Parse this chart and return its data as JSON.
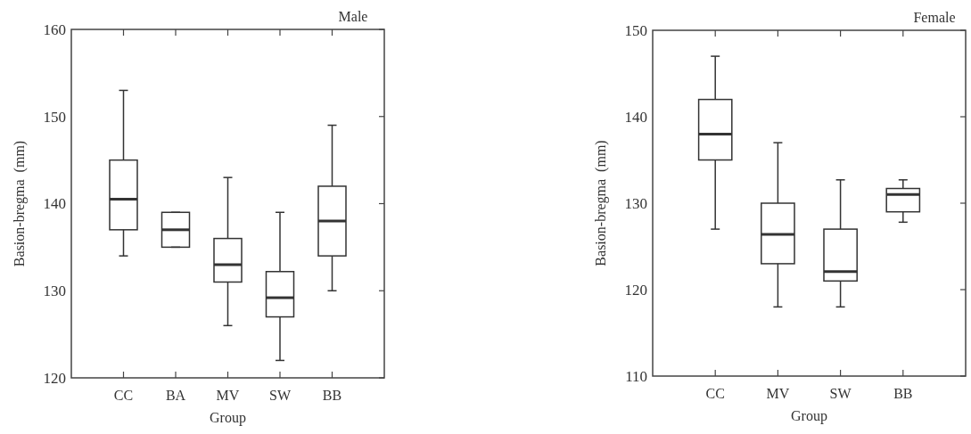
{
  "chart_data": [
    {
      "type": "box",
      "title": "Male",
      "xlabel": "Group",
      "ylabel": "Basion-bregma  (mm)",
      "categories": [
        "CC",
        "BA",
        "MV",
        "SW",
        "BB"
      ],
      "ylim": [
        120,
        160
      ],
      "yticks": [
        120,
        130,
        140,
        150,
        160
      ],
      "grid": false,
      "color": "#333333",
      "boxes": [
        {
          "low": 134,
          "q1": 137,
          "median": 140.5,
          "q3": 145,
          "high": 153
        },
        {
          "low": 135,
          "q1": 135,
          "median": 137,
          "q3": 139,
          "high": 139
        },
        {
          "low": 126,
          "q1": 131,
          "median": 133,
          "q3": 136,
          "high": 143
        },
        {
          "low": 122,
          "q1": 127,
          "median": 129.2,
          "q3": 132.2,
          "high": 139
        },
        {
          "low": 130,
          "q1": 134,
          "median": 138,
          "q3": 142,
          "high": 149
        }
      ]
    },
    {
      "type": "box",
      "title": "Female",
      "xlabel": "Group",
      "ylabel": "Basion-bregma  (mm)",
      "categories": [
        "CC",
        "MV",
        "SW",
        "BB"
      ],
      "ylim": [
        110,
        150
      ],
      "yticks": [
        110,
        120,
        130,
        140,
        150
      ],
      "grid": false,
      "color": "#333333",
      "boxes": [
        {
          "low": 127,
          "q1": 135,
          "median": 138,
          "q3": 142,
          "high": 147
        },
        {
          "low": 118,
          "q1": 123,
          "median": 126.4,
          "q3": 130,
          "high": 137
        },
        {
          "low": 118,
          "q1": 121,
          "median": 122.1,
          "q3": 127,
          "high": 132.7
        },
        {
          "low": 127.8,
          "q1": 129,
          "median": 131,
          "q3": 131.7,
          "high": 132.7
        }
      ]
    }
  ]
}
